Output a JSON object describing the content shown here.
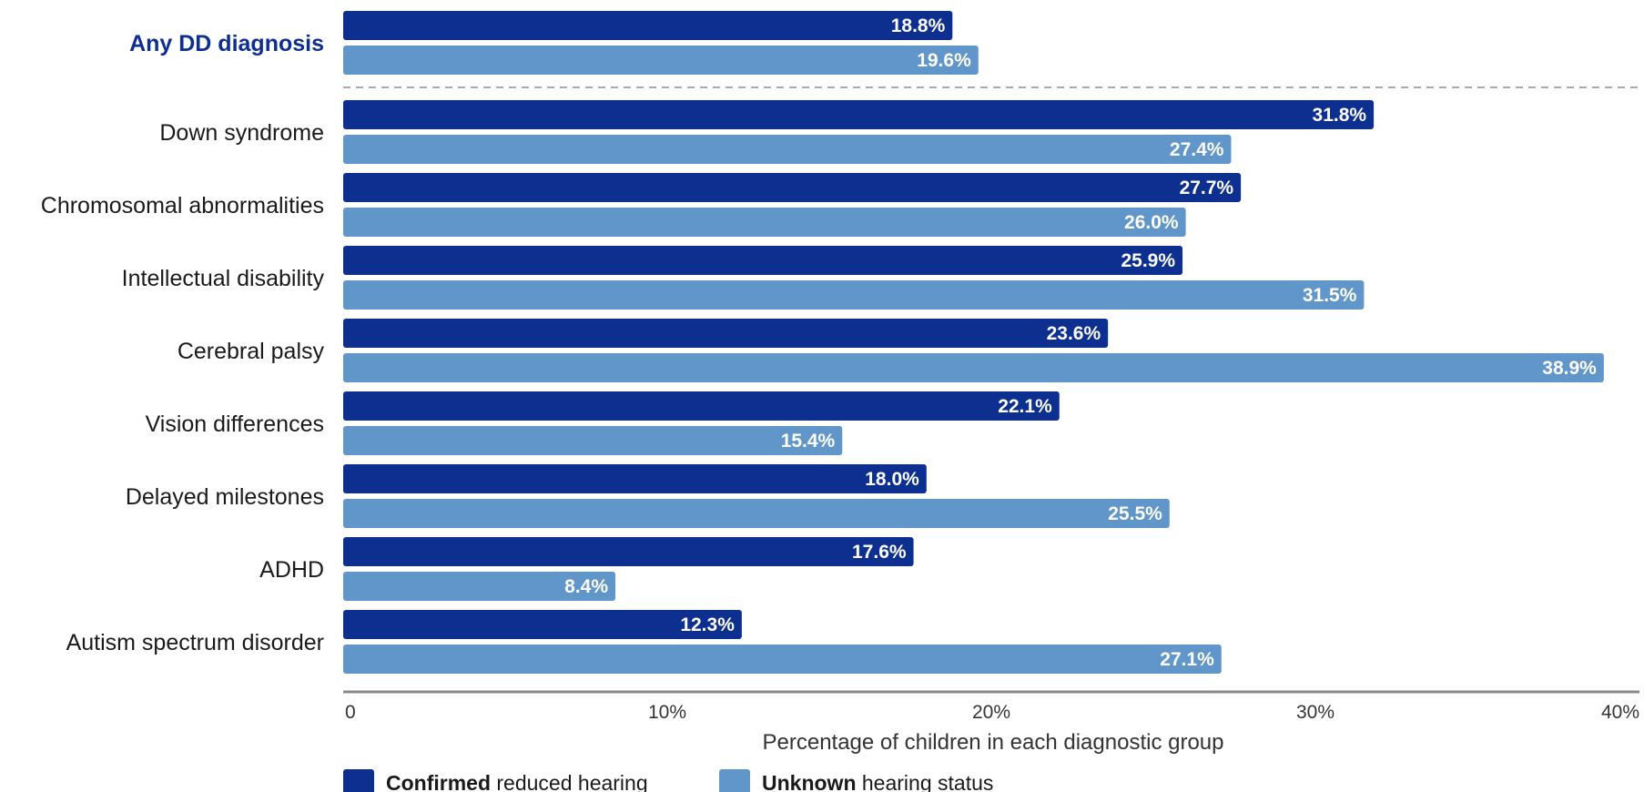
{
  "chart_data": {
    "type": "bar",
    "orientation": "horizontal",
    "categories": [
      "Any DD diagnosis",
      "Down syndrome",
      "Chromosomal abnormalities",
      "Intellectual disability",
      "Cerebral palsy",
      "Vision differences",
      "Delayed milestones",
      "ADHD",
      "Autism spectrum disorder"
    ],
    "highlight_category": "Any DD diagnosis",
    "separator_after_first": true,
    "series": [
      {
        "name": "Confirmed reduced hearing",
        "legend_bold": "Confirmed",
        "legend_rest": " reduced hearing",
        "color": "#0d2f8f",
        "values": [
          18.8,
          31.8,
          27.7,
          25.9,
          23.6,
          22.1,
          18.0,
          17.6,
          12.3
        ],
        "labels": [
          "18.8%",
          "31.8%",
          "27.7%",
          "25.9%",
          "23.6%",
          "22.1%",
          "18.0%",
          "17.6%",
          "12.3%"
        ]
      },
      {
        "name": "Unknown hearing status",
        "legend_bold": "Unknown",
        "legend_rest": " hearing status",
        "color": "#6096c9",
        "values": [
          19.6,
          27.4,
          26.0,
          31.5,
          38.9,
          15.4,
          25.5,
          8.4,
          27.1
        ],
        "labels": [
          "19.6%",
          "27.4%",
          "26.0%",
          "31.5%",
          "38.9%",
          "15.4%",
          "25.5%",
          "8.4%",
          "27.1%"
        ]
      }
    ],
    "xlim": [
      0,
      40
    ],
    "xticks": [
      0,
      10,
      20,
      30,
      40
    ],
    "xtick_labels": [
      "0",
      "10%",
      "20%",
      "30%",
      "40%"
    ],
    "xlabel": "Percentage of children in each diagnostic group",
    "ylabel": "",
    "title": "",
    "grid": false,
    "legend_position": "bottom-left"
  }
}
